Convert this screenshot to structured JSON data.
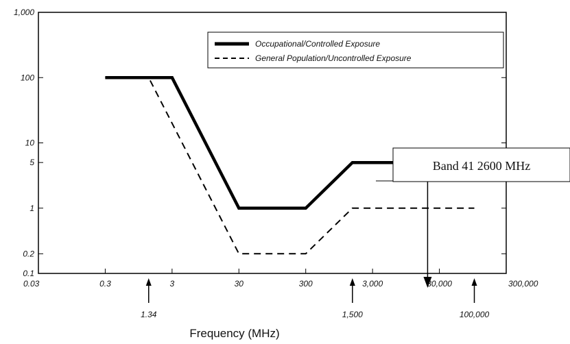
{
  "chart_data": {
    "type": "line",
    "xlabel": "Frequency (MHz)",
    "ylabel": "",
    "x_scale": "log",
    "y_scale": "log",
    "xlim": [
      0.03,
      300000
    ],
    "ylim": [
      0.1,
      1000
    ],
    "x_ticks": [
      {
        "value": 0.03,
        "label": "0.03"
      },
      {
        "value": 0.3,
        "label": "0.3"
      },
      {
        "value": 3,
        "label": "3"
      },
      {
        "value": 30,
        "label": "30"
      },
      {
        "value": 300,
        "label": "300"
      },
      {
        "value": 3000,
        "label": "3,000"
      },
      {
        "value": 30000,
        "label": "30,000"
      },
      {
        "value": 300000,
        "label": "300,000"
      }
    ],
    "y_ticks": [
      {
        "value": 1000,
        "label": "1,000"
      },
      {
        "value": 100,
        "label": "100"
      },
      {
        "value": 10,
        "label": "10"
      },
      {
        "value": 5,
        "label": "5"
      },
      {
        "value": 1,
        "label": "1"
      },
      {
        "value": 0.2,
        "label": "0.2"
      },
      {
        "value": 0.1,
        "label": "0.1"
      }
    ],
    "series": [
      {
        "name": "Occupational/Controlled Exposure",
        "style": "solid",
        "color": "#000000",
        "x": [
          0.3,
          3,
          30,
          300,
          1500,
          100000
        ],
        "y": [
          100,
          100,
          1,
          1,
          5,
          5
        ]
      },
      {
        "name": "General Population/Uncontrolled Exposure",
        "style": "dashed",
        "color": "#000000",
        "x": [
          0.3,
          1.34,
          30,
          300,
          1500,
          100000
        ],
        "y": [
          100,
          100,
          0.2,
          0.2,
          1,
          1
        ]
      }
    ],
    "annotations": [
      {
        "label": "1.34",
        "x": 1.34
      },
      {
        "label": "1,500",
        "x": 1500
      },
      {
        "label": "100,000",
        "x": 100000
      }
    ],
    "callout": {
      "label": "Band 41 2600 MHz",
      "x": 20000
    },
    "legend_position": "top-right",
    "grid": false
  }
}
